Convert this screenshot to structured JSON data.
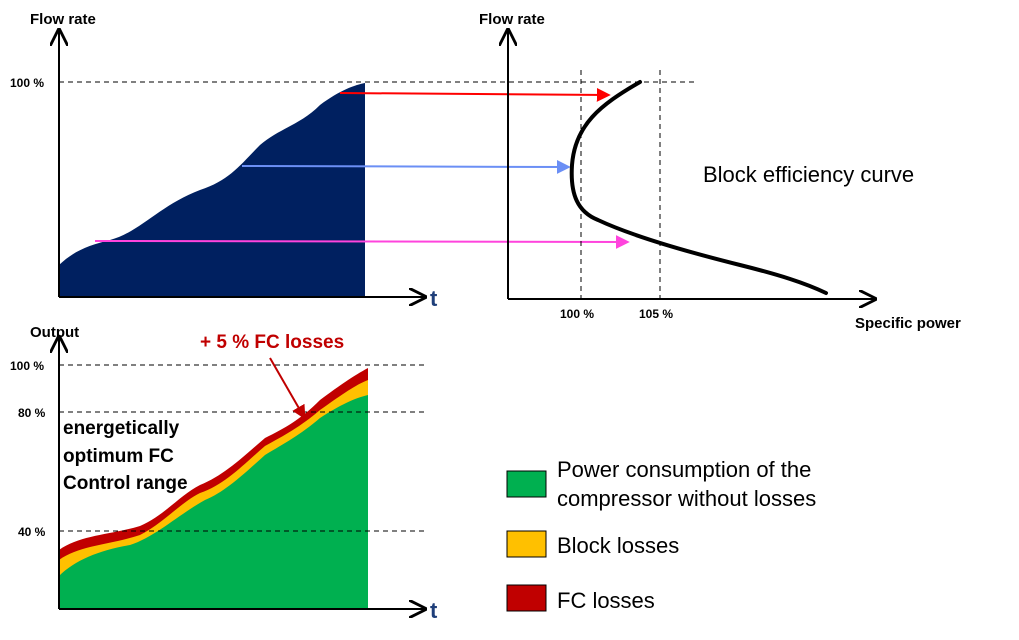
{
  "top_left": {
    "y_label": "Flow rate",
    "x_label": "t",
    "tick_100": "100 %"
  },
  "top_right": {
    "y_label": "Flow rate",
    "x_label": "Specific power",
    "tick_100": "100 %",
    "tick_105": "105 %",
    "curve_label": "Block efficiency curve"
  },
  "bottom": {
    "y_label": "Output",
    "x_label": "t",
    "tick_100": "100 %",
    "tick_80": "80 %",
    "tick_40": "40 %",
    "fc_losses_note": "+ 5 % FC losses",
    "range_note_line1": "energetically",
    "range_note_line2": "optimum FC",
    "range_note_line3": "Control range"
  },
  "legend": {
    "items": [
      {
        "line1": "Power consumption of the",
        "line2": "compressor without losses",
        "color": "#00b050"
      },
      {
        "line1": "Block losses",
        "line2": "",
        "color": "#ffc000"
      },
      {
        "line1": "FC losses",
        "line2": "",
        "color": "#c00000"
      }
    ]
  },
  "colors": {
    "flow_area": "#002060",
    "arrow_red": "#ff0000",
    "arrow_blue": "#6b8ff5",
    "arrow_pink": "#ff44dd",
    "curve": "#000000"
  }
}
